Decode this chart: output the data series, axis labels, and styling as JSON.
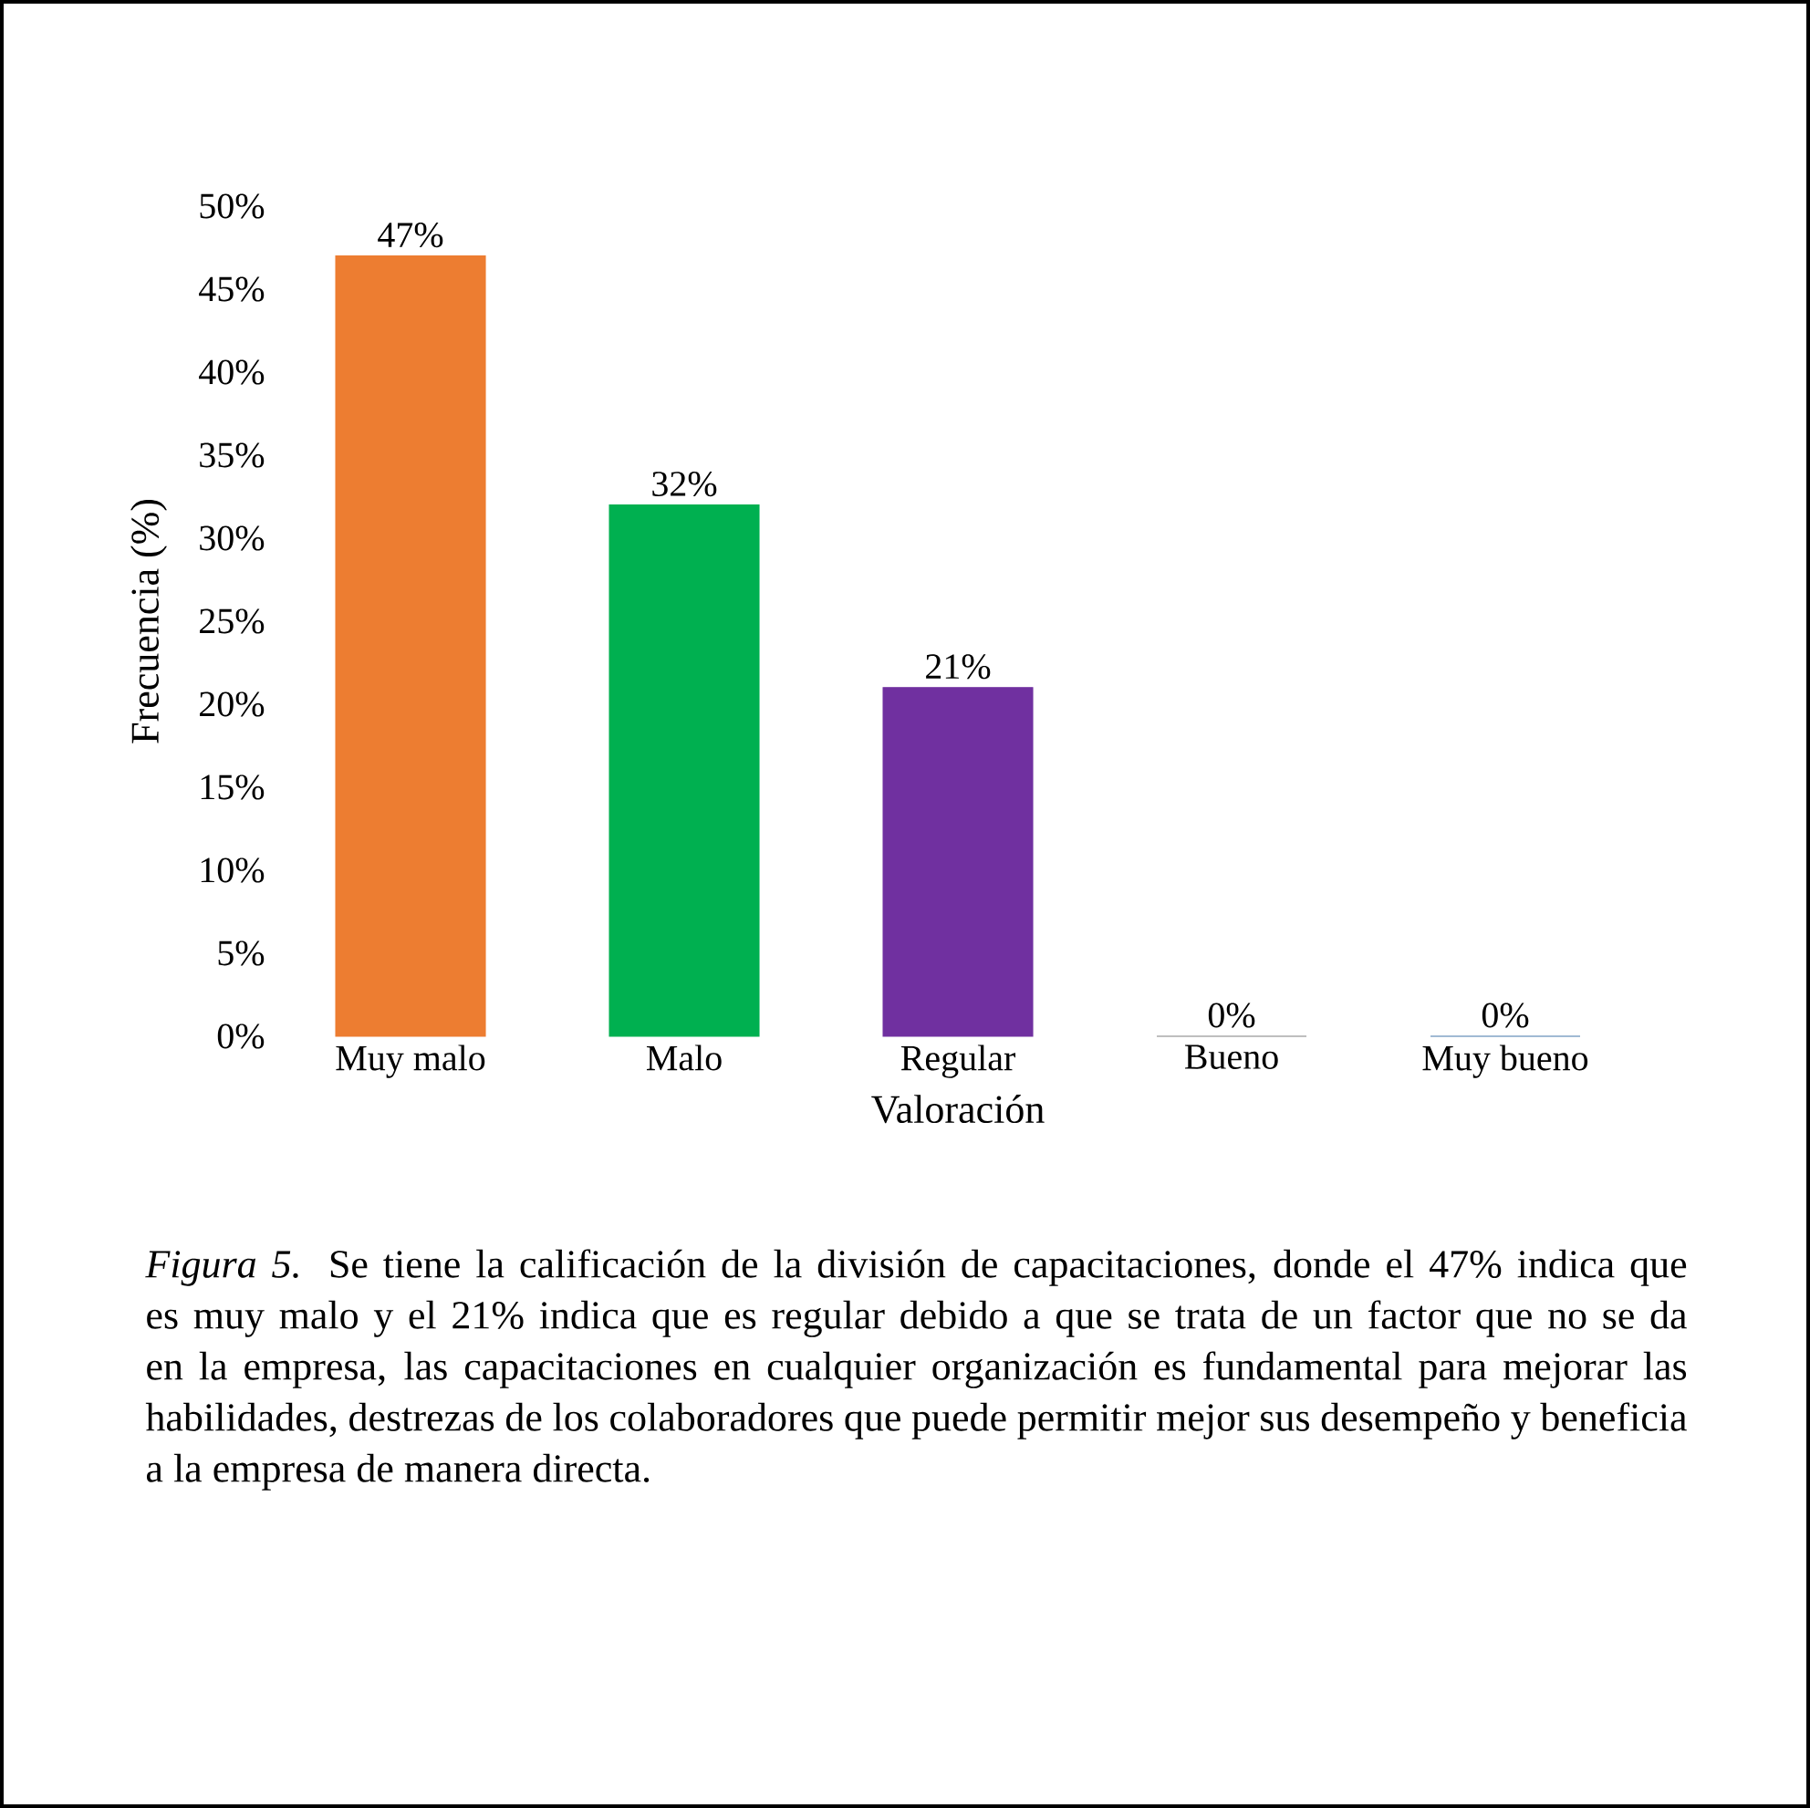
{
  "chart_data": {
    "type": "bar",
    "categories": [
      "Muy malo",
      "Malo",
      "Regular",
      "Bueno",
      "Muy bueno"
    ],
    "values": [
      47,
      32,
      21,
      0,
      0
    ],
    "colors": [
      "#ed7d31",
      "#00b050",
      "#7030a0",
      "#808080",
      "#4477aa"
    ],
    "value_labels": [
      "47%",
      "32%",
      "21%",
      "0%",
      "0%"
    ],
    "xlabel": "Valoración",
    "ylabel": "Frecuencia (%)",
    "ylim": [
      0,
      50
    ],
    "yticks": [
      {
        "value": 0,
        "label": "0%"
      },
      {
        "value": 5,
        "label": "5%"
      },
      {
        "value": 10,
        "label": "10%"
      },
      {
        "value": 15,
        "label": "15%"
      },
      {
        "value": 20,
        "label": "20%"
      },
      {
        "value": 25,
        "label": "25%"
      },
      {
        "value": 30,
        "label": "30%"
      },
      {
        "value": 35,
        "label": "35%"
      },
      {
        "value": 40,
        "label": "40%"
      },
      {
        "value": 45,
        "label": "45%"
      },
      {
        "value": 50,
        "label": "50%"
      }
    ],
    "annotations": [
      "*Figura 5.* Se tiene la calificación de la división de capacitaciones, donde el 47% indica que es muy malo y el 21% indica que es regular debido a que se trata de un factor que no se da en la empresa, las capacitaciones en cualquier organización es fundamental para mejorar las habilidades, destrezas de los colaboradores que puede permitir mejor sus desempeño y beneficia a la empresa de manera directa."
    ]
  }
}
